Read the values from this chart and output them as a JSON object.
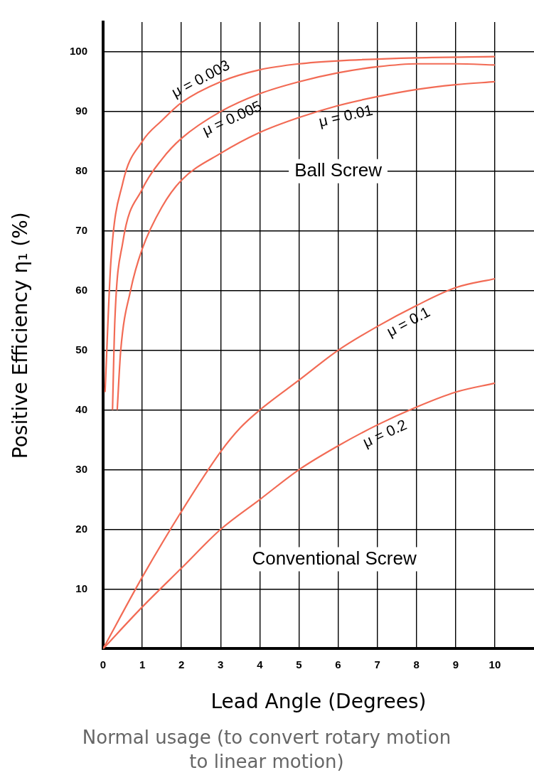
{
  "chart_data": {
    "type": "line",
    "xlabel": "Lead Angle (Degrees)",
    "ylabel": "Positive Efficiency η₁ (%)",
    "xlim": [
      0,
      11
    ],
    "xticks": [
      0,
      1,
      2,
      3,
      4,
      5,
      6,
      7,
      8,
      9,
      10
    ],
    "ylim": [
      0,
      105
    ],
    "yticks": [
      10,
      20,
      30,
      40,
      50,
      60,
      70,
      80,
      90,
      100
    ],
    "grid": true,
    "legend": false,
    "marker": "none",
    "line_style": "solid",
    "series": [
      {
        "name": "μ = 0.003",
        "color": "#f26b55",
        "x": [
          0.05,
          0.2,
          0.5,
          1,
          1.5,
          2,
          3,
          4,
          5,
          6,
          8,
          10
        ],
        "values": [
          43,
          65,
          78,
          85,
          88.5,
          91.5,
          95,
          97,
          98,
          98.5,
          99,
          99.2
        ]
      },
      {
        "name": "μ = 0.005",
        "color": "#f26b55",
        "x": [
          0.24,
          0.3,
          0.5,
          1,
          1.5,
          2,
          3,
          4,
          5,
          6,
          7,
          8,
          9,
          10
        ],
        "values": [
          40,
          55,
          68,
          77,
          82,
          85.5,
          90,
          93,
          95,
          96.5,
          97.5,
          98,
          98,
          97.8
        ]
      },
      {
        "name": "μ = 0.01",
        "color": "#f26b55",
        "x": [
          0.36,
          0.45,
          0.7,
          1,
          1.5,
          2,
          3,
          4,
          5,
          6,
          7,
          8,
          9,
          10
        ],
        "values": [
          40,
          50,
          60,
          67,
          74,
          78.5,
          83,
          86.5,
          89,
          91,
          92.5,
          93.7,
          94.5,
          95
        ]
      },
      {
        "name": "μ = 0.1",
        "color": "#f26b55",
        "x": [
          0,
          1,
          2,
          3,
          3.5,
          4,
          5,
          6,
          7,
          8,
          9,
          10
        ],
        "values": [
          0,
          12,
          23,
          33,
          37,
          40,
          45,
          50,
          54,
          57.5,
          60.5,
          62
        ]
      },
      {
        "name": "μ = 0.2",
        "color": "#f26b55",
        "x": [
          0,
          1,
          2,
          3,
          4,
          5,
          6,
          7,
          8,
          9,
          10
        ],
        "values": [
          0,
          7,
          13.5,
          20,
          25,
          30,
          34,
          37.5,
          40.5,
          43,
          44.5
        ]
      }
    ],
    "annotations": [
      "Ball Screw",
      "Conventional Screw",
      "Normal usage (to convert rotary motion to linear motion)"
    ]
  }
}
